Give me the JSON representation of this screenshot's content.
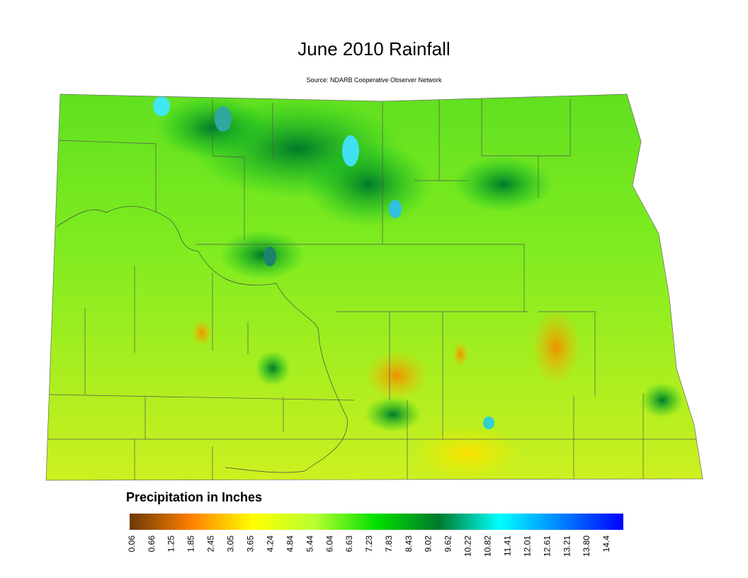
{
  "title": "June 2010 Rainfall",
  "subtitle": "Source: NDARB Cooperative Observer Network",
  "legend": {
    "title": "Precipitation in Inches",
    "ticks": [
      0.06,
      0.66,
      1.25,
      1.85,
      2.45,
      3.05,
      3.65,
      4.24,
      4.84,
      5.44,
      6.04,
      6.63,
      7.23,
      {
        "value": 7.83,
        "label": "7.83"
      },
      8.43,
      9.02,
      9.62,
      10.22,
      10.82,
      11.41,
      12.01,
      12.61,
      13.21,
      {
        "value": 13.8,
        "label": "13.80"
      },
      14.4
    ],
    "colors": [
      "#6b3a05",
      "#ff8000",
      "#ffff00",
      "#b8ff30",
      "#00e000",
      "#007a2a",
      "#00ffff",
      "#0080ff",
      "#0000ff"
    ]
  }
}
